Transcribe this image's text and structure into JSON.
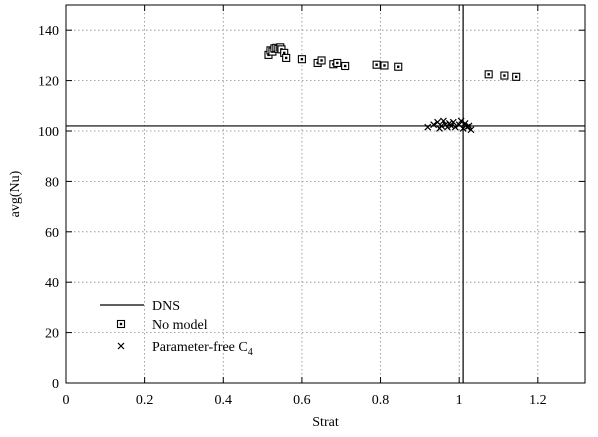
{
  "chart_data": {
    "type": "scatter",
    "title": "",
    "xlabel": "Strat",
    "ylabel": "avg(Nu)",
    "xlim": [
      0,
      1.32
    ],
    "ylim": [
      0,
      150
    ],
    "x_ticks": [
      0,
      0.2,
      0.4,
      0.6,
      0.8,
      1,
      1.2
    ],
    "x_tick_labels": [
      "0",
      "0.2",
      "0.4",
      "0.6",
      "0.8",
      "1",
      "1.2"
    ],
    "y_ticks": [
      0,
      20,
      40,
      60,
      80,
      100,
      120,
      140
    ],
    "y_tick_labels": [
      "0",
      "20",
      "40",
      "60",
      "80",
      "100",
      "120",
      "140"
    ],
    "grid": true,
    "legend_position": "bottom-left",
    "reference_lines": {
      "name": "DNS",
      "x": 1.01,
      "y": 102
    },
    "series": [
      {
        "name": "No model",
        "marker": "square",
        "points": [
          [
            0.515,
            130.2
          ],
          [
            0.52,
            132.0
          ],
          [
            0.525,
            131.5
          ],
          [
            0.53,
            132.8
          ],
          [
            0.535,
            133.0
          ],
          [
            0.54,
            132.6
          ],
          [
            0.545,
            133.2
          ],
          [
            0.548,
            132.4
          ],
          [
            0.555,
            131.0
          ],
          [
            0.56,
            129.0
          ],
          [
            0.6,
            128.5
          ],
          [
            0.64,
            127.0
          ],
          [
            0.65,
            128.0
          ],
          [
            0.68,
            126.5
          ],
          [
            0.69,
            127.0
          ],
          [
            0.71,
            125.8
          ],
          [
            0.79,
            126.3
          ],
          [
            0.81,
            126.0
          ],
          [
            0.845,
            125.5
          ],
          [
            1.075,
            122.5
          ],
          [
            1.115,
            122.0
          ],
          [
            1.145,
            121.5
          ]
        ]
      },
      {
        "name": "Parameter-free C",
        "name_subscript": "4",
        "marker": "cross",
        "points": [
          [
            0.92,
            101.5
          ],
          [
            0.935,
            102.5
          ],
          [
            0.945,
            103.5
          ],
          [
            0.95,
            101.0
          ],
          [
            0.955,
            102.0
          ],
          [
            0.96,
            104.0
          ],
          [
            0.965,
            102.5
          ],
          [
            0.97,
            101.5
          ],
          [
            0.975,
            103.0
          ],
          [
            0.98,
            102.0
          ],
          [
            0.985,
            103.5
          ],
          [
            0.99,
            101.5
          ],
          [
            1.0,
            102.5
          ],
          [
            1.005,
            104.0
          ],
          [
            1.01,
            101.0
          ],
          [
            1.015,
            103.0
          ],
          [
            1.02,
            101.5
          ],
          [
            1.025,
            102.0
          ],
          [
            1.03,
            100.5
          ]
        ]
      }
    ]
  }
}
